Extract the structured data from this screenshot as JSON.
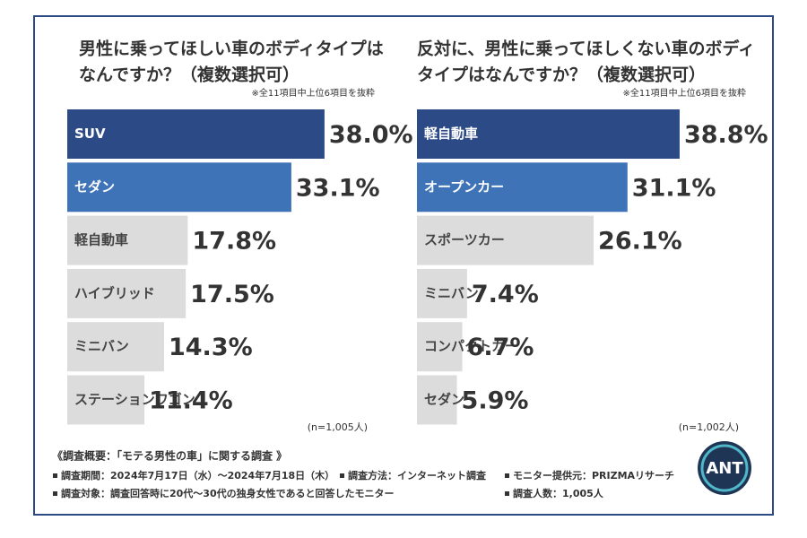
{
  "chart_data": [
    {
      "type": "bar",
      "title": [
        "男性に乗ってほしい車のボディタイプは",
        "なんですか？（複数選択可）"
      ],
      "note": "※全11項目中上位6項目を抜粋",
      "categories": [
        "SUV",
        "セダン",
        "軽自動車",
        "ハイブリッド",
        "ミニバン",
        "ステーションワゴン"
      ],
      "values": [
        38.0,
        33.1,
        17.8,
        17.5,
        14.3,
        11.4
      ],
      "value_labels": [
        "38.0%",
        "33.1%",
        "17.8%",
        "17.5%",
        "14.3%",
        "11.4%"
      ],
      "colors": [
        "#2c4a86",
        "#3f73b8",
        "#dcdcdc",
        "#dcdcdc",
        "#dcdcdc",
        "#dcdcdc"
      ],
      "sample": "(n=1,005人)"
    },
    {
      "type": "bar",
      "title": [
        "反対に、男性に乗ってほしくない車のボディ",
        "タイプはなんですか？（複数選択可）"
      ],
      "note": "※全11項目中上位6項目を抜粋",
      "categories": [
        "軽自動車",
        "オープンカー",
        "スポーツカー",
        "ミニバン",
        "コンパクトカー",
        "セダン"
      ],
      "values": [
        38.8,
        31.1,
        26.1,
        7.4,
        6.7,
        5.9
      ],
      "value_labels": [
        "38.8%",
        "31.1%",
        "26.1%",
        "7.4%",
        "6.7%",
        "5.9%"
      ],
      "colors": [
        "#2c4a86",
        "#3f73b8",
        "#dcdcdc",
        "#dcdcdc",
        "#dcdcdc",
        "#dcdcdc"
      ],
      "sample": "(n=1,002人)"
    }
  ],
  "footer": {
    "heading": "《調査概要：「モテる男性の車」に関する調査 》",
    "items": [
      "調査期間：2024年7月17日（水）～2024年7月18日（木）",
      "調査方法：インターネット調査",
      "モニター提供元：PRIZMAリサーチ",
      "調査対象：調査回答時に20代～30代の独身女性であると回答したモニター",
      "調査人数：1,005人"
    ],
    "logo": "ANT"
  }
}
